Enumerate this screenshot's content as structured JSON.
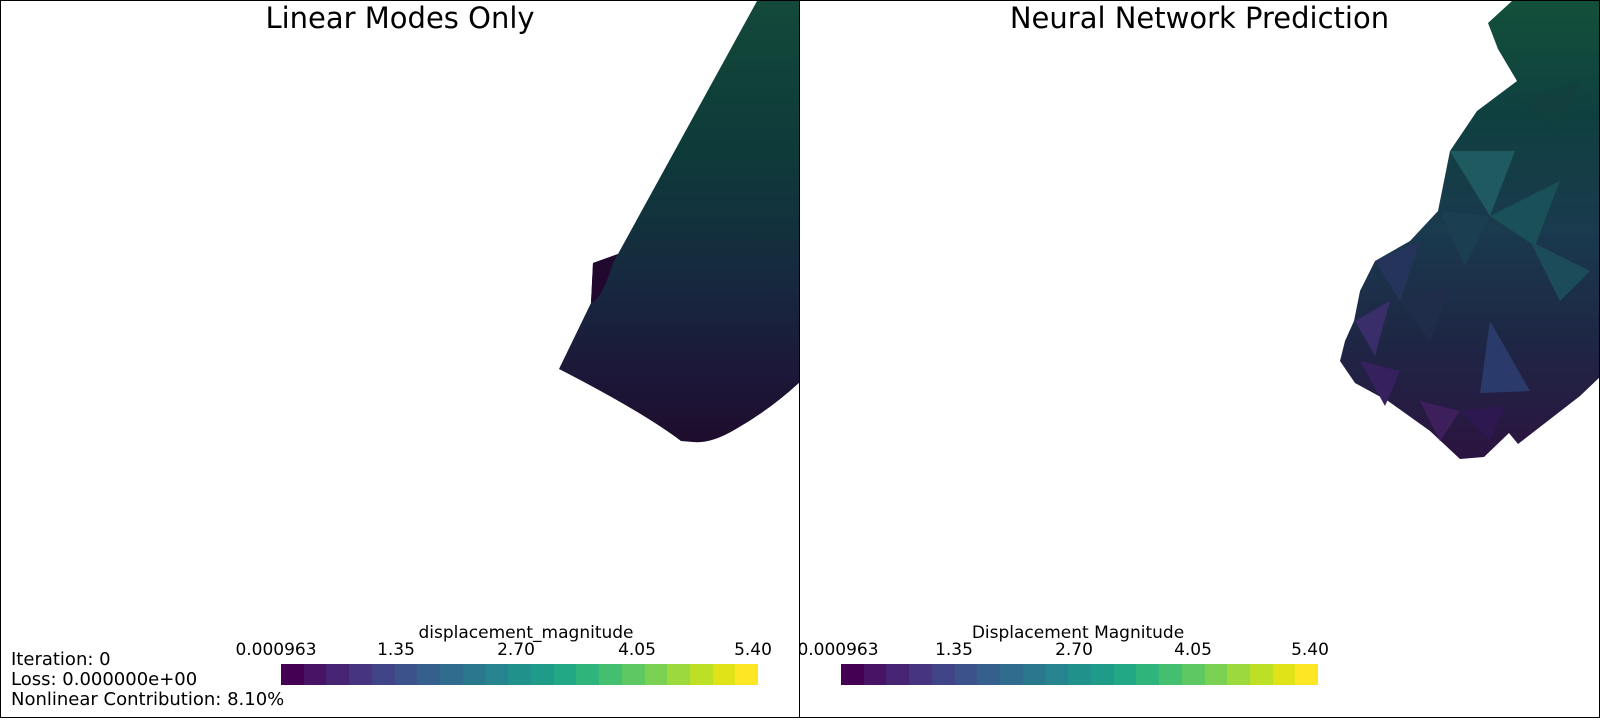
{
  "left_panel": {
    "title": "Linear Modes Only",
    "colorbar": {
      "title": "displacement_magnitude",
      "ticks": [
        "0.000963",
        "1.35",
        "2.70",
        "4.05",
        "5.40"
      ]
    },
    "stats": {
      "iteration": "Iteration: 0",
      "loss": "Loss: 0.000000e+00",
      "nonlinear": "Nonlinear Contribution: 8.10%"
    }
  },
  "right_panel": {
    "title": "Neural Network Prediction",
    "colorbar": {
      "title": "Displacement Magnitude",
      "ticks": [
        "0.000963",
        "1.35",
        "2.70",
        "4.05",
        "5.40"
      ]
    }
  },
  "colormap": {
    "name": "viridis",
    "colors": [
      "#440154",
      "#471365",
      "#482475",
      "#463480",
      "#414487",
      "#3b528b",
      "#355f8d",
      "#2f6c8e",
      "#2a788e",
      "#25848e",
      "#21918c",
      "#1e9c89",
      "#22a884",
      "#2fb47c",
      "#44bf70",
      "#5ec962",
      "#7ad151",
      "#9bd93c",
      "#bddf26",
      "#dfe318",
      "#fde725"
    ]
  }
}
